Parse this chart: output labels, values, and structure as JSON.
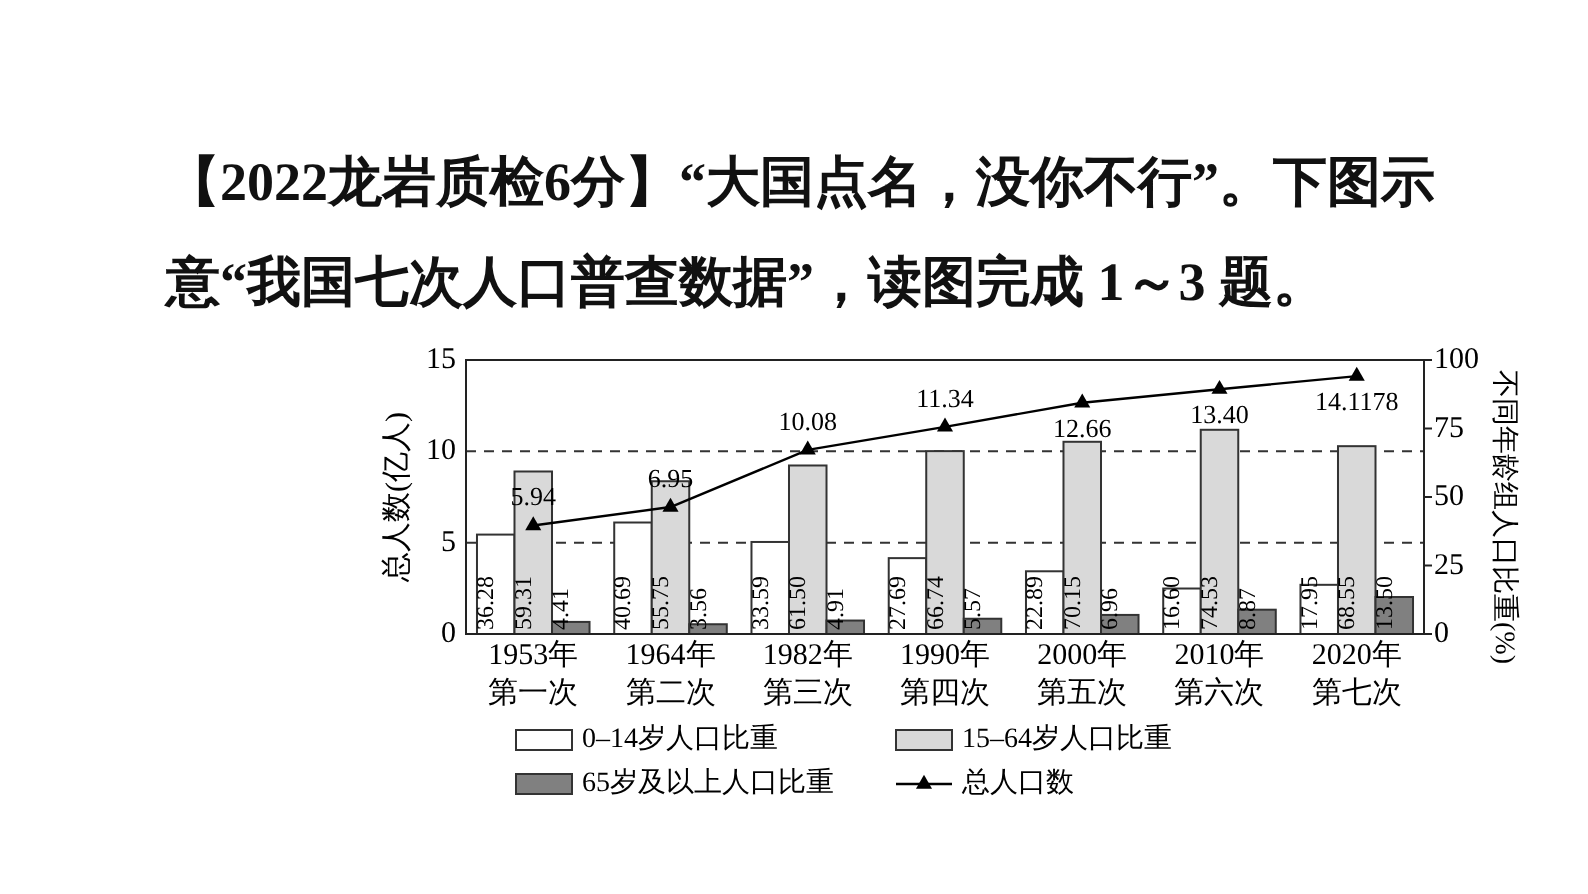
{
  "chart_data": {
    "type": "bar",
    "title": "【2022龙岩质检6分】“大国点名，没你不行”。下图示意“我国七次人口普查数据”，读图完成 1～3 题。",
    "ylabel": "总人数(亿人)",
    "y2label": "不同年龄组人口比重(%)",
    "categories": [
      "1953年第一次",
      "1964年第二次",
      "1982年第三次",
      "1990年第四次",
      "2000年第五次",
      "2010年第六次",
      "2020年第七次"
    ],
    "series": [
      {
        "name": "0–14岁人口比重",
        "color": "#ffffff",
        "axis": "y2",
        "values": [
          36.28,
          40.69,
          33.59,
          27.69,
          22.89,
          16.6,
          17.95
        ],
        "value_labels": [
          "36.28",
          "40.69",
          "33.59",
          "27.69",
          "22.89",
          "16.60",
          "17.95"
        ]
      },
      {
        "name": "15–64岁人口比重",
        "color": "#d9d9d9",
        "axis": "y2",
        "values": [
          59.31,
          55.75,
          61.5,
          66.74,
          70.15,
          74.53,
          68.55
        ],
        "value_labels": [
          "59.31",
          "55.75",
          "61.50",
          "66.74",
          "70.15",
          "74.53",
          "68.55"
        ]
      },
      {
        "name": "65岁及以上人口比重",
        "color": "#808080",
        "axis": "y2",
        "values": [
          4.41,
          3.56,
          4.91,
          5.57,
          6.96,
          8.87,
          13.5
        ],
        "value_labels": [
          "4.41",
          "3.56",
          "4.91",
          "5.57",
          "6.96",
          "8.87",
          "13.50"
        ]
      },
      {
        "name": "总人口数",
        "type": "line",
        "color": "#000000",
        "marker": "triangle",
        "values": [
          5.94,
          6.95,
          10.08,
          11.34,
          12.66,
          13.4,
          14.1178
        ],
        "value_labels": [
          "5.94",
          "6.95",
          "10.08",
          "11.34",
          "12.66",
          "13.40",
          "14.1178"
        ]
      }
    ],
    "ylim": [
      0,
      15
    ],
    "yticks": [
      0,
      5,
      10,
      15
    ],
    "y2lim": [
      0,
      100
    ],
    "y2ticks": [
      0,
      25,
      50,
      75,
      100
    ],
    "grid": "y",
    "legend": "bottom"
  }
}
